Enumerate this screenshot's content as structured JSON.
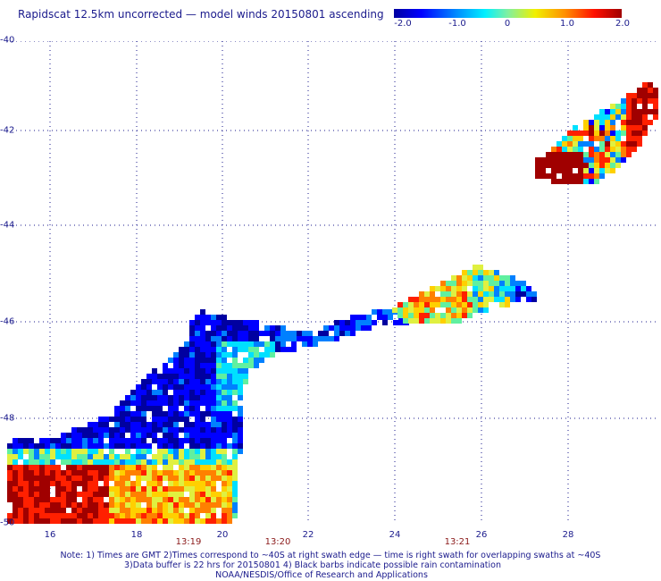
{
  "header": {
    "title": "Rapidscat 12.5km uncorrected — model winds 20150801 ascending"
  },
  "colorbar": {
    "ticks": [
      "-2.0",
      "-1.0",
      "0",
      "1.0",
      "2.0"
    ],
    "range": [
      -2.0,
      2.0
    ],
    "colors": [
      "#0000a0",
      "#0000ff",
      "#0080ff",
      "#00e0ff",
      "#60f0a0",
      "#e0f040",
      "#ffd000",
      "#ff8000",
      "#ff2000",
      "#a00000"
    ]
  },
  "map": {
    "lat_labels": [
      "-40",
      "-42",
      "-44",
      "-46",
      "-48",
      "-50"
    ],
    "lon_labels": [
      "16",
      "18",
      "20",
      "22",
      "24",
      "26",
      "28"
    ],
    "lat_range": [
      -40,
      -50
    ],
    "lon_range": [
      15,
      30
    ],
    "grid": true,
    "time_labels": [
      {
        "text": "13:19",
        "lon": 19.3
      },
      {
        "text": "13:20",
        "lon": 21.3
      },
      {
        "text": "13:21",
        "lon": 25.4
      }
    ]
  },
  "notes": {
    "line1": "Note: 1) Times are GMT 2)Times correspond to ~40S at right swath edge — time is right swath for overlapping swaths at ~40S",
    "line2": "3)Data buffer is 22 hrs for 20150801 4) Black barbs indicate possible rain contamination",
    "line3": "NOAA/NESDIS/Office of Research and Applications"
  }
}
